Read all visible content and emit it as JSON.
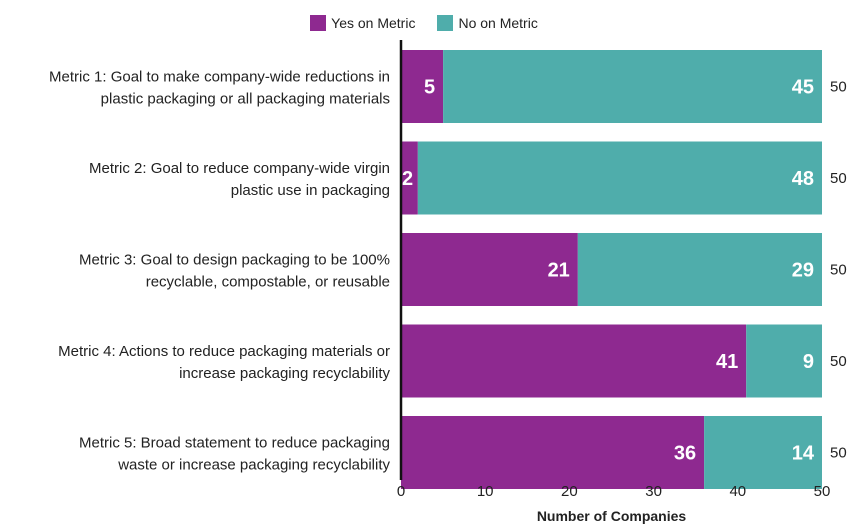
{
  "chart_data": {
    "type": "bar",
    "orientation": "horizontal",
    "stacked": true,
    "categories": [
      [
        "Metric 1: Goal to make company-wide reductions in",
        "plastic packaging or all packaging materials"
      ],
      [
        "Metric 2: Goal to reduce company-wide virgin",
        "plastic use in packaging"
      ],
      [
        "Metric 3: Goal to design packaging to be 100%",
        "recyclable, compostable, or reusable"
      ],
      [
        "Metric 4: Actions to reduce packaging materials or",
        "increase packaging recyclability"
      ],
      [
        "Metric 5: Broad statement to reduce packaging",
        "waste or increase packaging recyclability"
      ]
    ],
    "series": [
      {
        "name": "Yes on Metric",
        "color": "#8e2990",
        "values": [
          5,
          2,
          21,
          41,
          36
        ]
      },
      {
        "name": "No on Metric",
        "color": "#4fadab",
        "values": [
          45,
          48,
          29,
          9,
          14
        ]
      }
    ],
    "totals": [
      50,
      50,
      50,
      50,
      50
    ],
    "xlabel": "Number of Companies",
    "xlim": [
      0,
      50
    ],
    "xticks": [
      0,
      10,
      20,
      30,
      40,
      50
    ],
    "grid": false,
    "legend_position": "top-center"
  }
}
